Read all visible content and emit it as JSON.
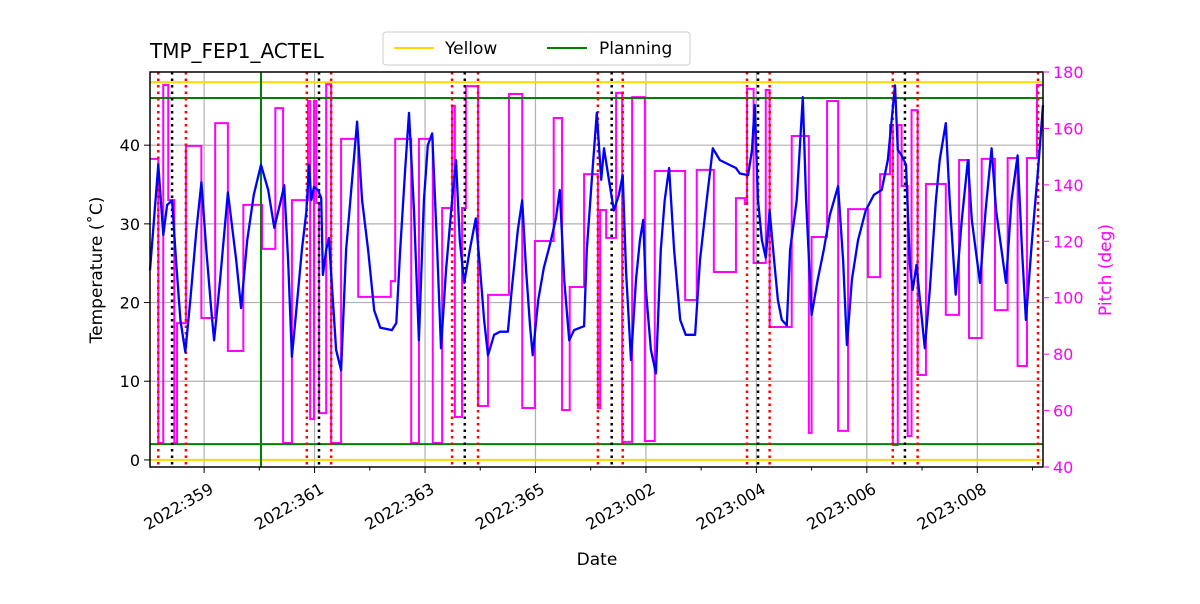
{
  "chart_data": {
    "type": "line",
    "title": "TMP_FEP1_ACTEL",
    "xlabel": "Date",
    "ylabel": "Temperature ($^\\circ$C)",
    "ylabel_display": "Temperature (˚C)",
    "y2label": "Pitch (deg)",
    "xlim": [
      "2022:358.02",
      "2023:009.19"
    ],
    "ylim": [
      -0.9,
      49.3
    ],
    "y2lim": [
      40,
      180
    ],
    "grid": true,
    "legend_placement": "top-center, above plot",
    "x_tick_labels": [
      "2022:359",
      "2022:361",
      "2022:363",
      "2022:365",
      "2023:002",
      "2023:004",
      "2023:006",
      "2023:008"
    ],
    "y_ticks": [
      0,
      10,
      20,
      30,
      40
    ],
    "y2_ticks": [
      40,
      60,
      80,
      100,
      120,
      140,
      160,
      180
    ],
    "colors": {
      "temperature": "#0000ff",
      "pitch": "#ff00ff",
      "yellow": "#ffd700",
      "planning": "#008000",
      "red_marker": "#ff0000",
      "black_marker": "#000000",
      "grid": "#b0b0b0"
    },
    "legend": [
      {
        "name": "Yellow",
        "color": "#ffd700"
      },
      {
        "name": "Planning",
        "color": "#008000"
      }
    ],
    "hlines": [
      {
        "series": "Yellow",
        "value": 48
      },
      {
        "series": "Yellow",
        "value": 0
      },
      {
        "series": "Planning",
        "value": 46
      },
      {
        "series": "Planning",
        "value": 2
      }
    ],
    "vline_green": [
      "2022:360.03"
    ],
    "vlines_red": [
      "2022:358.17",
      "2022:358.67",
      "2022:360.86",
      "2022:361.30",
      "2022:363.49",
      "2022:363.96",
      "2023:001.13",
      "2023:001.58",
      "2023:003.83",
      "2023:004.24",
      "2023:006.47",
      "2023:006.92",
      "2023:009.10"
    ],
    "vlines_black": [
      "2022:358.42",
      "2022:361.08",
      "2022:363.72",
      "2023:001.38",
      "2023:004.03",
      "2023:006.69"
    ],
    "temperature": [
      [
        "2022:358.02",
        24.1
      ],
      [
        "2022:358.17",
        37.5
      ],
      [
        "2022:358.26",
        28.6
      ],
      [
        "2022:358.33",
        32.4
      ],
      [
        "2022:358.42",
        33.0
      ],
      [
        "2022:358.49",
        25.4
      ],
      [
        "2022:358.57",
        17.8
      ],
      [
        "2022:358.66",
        13.7
      ],
      [
        "2022:358.75",
        20.3
      ],
      [
        "2022:358.86",
        29.2
      ],
      [
        "2022:358.95",
        35.3
      ],
      [
        "2022:359.04",
        26.7
      ],
      [
        "2022:359.13",
        19.0
      ],
      [
        "2022:359.18",
        15.2
      ],
      [
        "2022:359.29",
        22.9
      ],
      [
        "2022:359.43",
        34.0
      ],
      [
        "2022:359.58",
        25.4
      ],
      [
        "2022:359.67",
        19.3
      ],
      [
        "2022:359.78",
        27.9
      ],
      [
        "2022:359.90",
        33.7
      ],
      [
        "2022:360.03",
        37.5
      ],
      [
        "2022:360.16",
        34.3
      ],
      [
        "2022:360.27",
        29.5
      ],
      [
        "2022:360.39",
        33.0
      ],
      [
        "2022:360.45",
        34.9
      ],
      [
        "2022:360.52",
        25.4
      ],
      [
        "2022:360.59",
        13.1
      ],
      [
        "2022:360.67",
        19.0
      ],
      [
        "2022:360.77",
        26.7
      ],
      [
        "2022:360.85",
        31.5
      ],
      [
        "2022:360.90",
        37.5
      ],
      [
        "2022:360.94",
        33.0
      ],
      [
        "2022:360.99",
        34.7
      ],
      [
        "2022:361.06",
        34.3
      ],
      [
        "2022:361.12",
        33.3
      ],
      [
        "2022:361.15",
        23.5
      ],
      [
        "2022:361.21",
        26.7
      ],
      [
        "2022:361.26",
        28.2
      ],
      [
        "2022:361.32",
        21.6
      ],
      [
        "2022:361.39",
        14.0
      ],
      [
        "2022:361.48",
        11.4
      ],
      [
        "2022:361.57",
        26.7
      ],
      [
        "2022:361.68",
        35.6
      ],
      [
        "2022:361.77",
        43.0
      ],
      [
        "2022:361.86",
        33.0
      ],
      [
        "2022:361.97",
        26.7
      ],
      [
        "2022:362.08",
        19.0
      ],
      [
        "2022:362.19",
        16.8
      ],
      [
        "2022:362.40",
        16.5
      ],
      [
        "2022:362.48",
        17.4
      ],
      [
        "2022:362.55",
        26.7
      ],
      [
        "2022:362.64",
        36.8
      ],
      [
        "2022:362.71",
        44.1
      ],
      [
        "2022:362.80",
        31.7
      ],
      [
        "2022:362.89",
        15.2
      ],
      [
        "2022:362.98",
        33.0
      ],
      [
        "2022:363.05",
        40.0
      ],
      [
        "2022:363.13",
        41.5
      ],
      [
        "2022:363.22",
        26.7
      ],
      [
        "2022:363.29",
        14.2
      ],
      [
        "2022:363.38",
        24.1
      ],
      [
        "2022:363.49",
        33.0
      ],
      [
        "2022:363.56",
        38.1
      ],
      [
        "2022:363.63",
        27.9
      ],
      [
        "2022:363.71",
        22.5
      ],
      [
        "2022:363.81",
        26.7
      ],
      [
        "2022:363.92",
        30.7
      ],
      [
        "2022:364.00",
        24.1
      ],
      [
        "2022:364.07",
        17.8
      ],
      [
        "2022:364.14",
        13.3
      ],
      [
        "2022:364.25",
        15.9
      ],
      [
        "2022:364.36",
        16.3
      ],
      [
        "2022:364.50",
        16.3
      ],
      [
        "2022:364.57",
        21.6
      ],
      [
        "2022:364.68",
        29.2
      ],
      [
        "2022:364.76",
        33.0
      ],
      [
        "2022:364.83",
        24.1
      ],
      [
        "2022:364.90",
        17.1
      ],
      [
        "2022:364.95",
        13.3
      ],
      [
        "2022:365.05",
        20.3
      ],
      [
        "2022:365.15",
        24.4
      ],
      [
        "2022:365.26",
        27.3
      ],
      [
        "2022:365.37",
        30.7
      ],
      [
        "2022:365.44",
        34.3
      ],
      [
        "2022:365.52",
        22.9
      ],
      [
        "2022:365.61",
        15.2
      ],
      [
        "2022:365.70",
        16.5
      ],
      [
        "2022:365.88",
        17.0
      ],
      [
        "2022:365.93",
        26.7
      ],
      [
        "2023:001.02",
        35.6
      ],
      [
        "2023:001.11",
        44.1
      ],
      [
        "2023:001.19",
        35.6
      ],
      [
        "2023:001.24",
        39.6
      ],
      [
        "2023:001.33",
        35.6
      ],
      [
        "2023:001.42",
        31.7
      ],
      [
        "2023:001.51",
        33.7
      ],
      [
        "2023:001.58",
        36.2
      ],
      [
        "2023:001.64",
        24.1
      ],
      [
        "2023:001.73",
        12.7
      ],
      [
        "2023:001.82",
        22.9
      ],
      [
        "2023:001.89",
        27.9
      ],
      [
        "2023:001.95",
        30.5
      ],
      [
        "2023:002.00",
        21.6
      ],
      [
        "2023:002.09",
        14.0
      ],
      [
        "2023:002.18",
        11.0
      ],
      [
        "2023:002.27",
        26.7
      ],
      [
        "2023:002.34",
        33.0
      ],
      [
        "2023:002.42",
        37.1
      ],
      [
        "2023:002.51",
        26.7
      ],
      [
        "2023:002.62",
        17.8
      ],
      [
        "2023:002.72",
        15.9
      ],
      [
        "2023:002.89",
        15.9
      ],
      [
        "2023:002.98",
        25.4
      ],
      [
        "2023:003.10",
        33.0
      ],
      [
        "2023:003.21",
        39.6
      ],
      [
        "2023:003.34",
        38.1
      ],
      [
        "2023:003.63",
        37.1
      ],
      [
        "2023:003.70",
        36.4
      ],
      [
        "2023:003.85",
        36.2
      ],
      [
        "2023:003.92",
        39.4
      ],
      [
        "2023:003.97",
        45.1
      ],
      [
        "2023:004.03",
        33.0
      ],
      [
        "2023:004.10",
        27.9
      ],
      [
        "2023:004.17",
        25.7
      ],
      [
        "2023:004.24",
        31.7
      ],
      [
        "2023:004.32",
        25.4
      ],
      [
        "2023:004.39",
        20.3
      ],
      [
        "2023:004.46",
        17.8
      ],
      [
        "2023:004.55",
        17.1
      ],
      [
        "2023:004.61",
        26.7
      ],
      [
        "2023:004.73",
        33.0
      ],
      [
        "2023:004.84",
        46.1
      ],
      [
        "2023:004.90",
        33.0
      ],
      [
        "2023:005.00",
        18.4
      ],
      [
        "2023:005.11",
        22.9
      ],
      [
        "2023:005.22",
        26.7
      ],
      [
        "2023:005.33",
        31.1
      ],
      [
        "2023:005.48",
        34.8
      ],
      [
        "2023:005.57",
        25.4
      ],
      [
        "2023:005.64",
        14.6
      ],
      [
        "2023:005.73",
        22.9
      ],
      [
        "2023:005.84",
        27.9
      ],
      [
        "2023:005.98",
        31.7
      ],
      [
        "2023:006.13",
        33.7
      ],
      [
        "2023:006.27",
        34.3
      ],
      [
        "2023:006.38",
        38.1
      ],
      [
        "2023:006.51",
        47.6
      ],
      [
        "2023:006.56",
        39.4
      ],
      [
        "2023:006.63",
        38.7
      ],
      [
        "2023:006.71",
        37.5
      ],
      [
        "2023:006.78",
        24.8
      ],
      [
        "2023:006.83",
        21.6
      ],
      [
        "2023:006.90",
        24.8
      ],
      [
        "2023:006.98",
        19.0
      ],
      [
        "2023:007.05",
        14.2
      ],
      [
        "2023:007.14",
        21.6
      ],
      [
        "2023:007.25",
        33.0
      ],
      [
        "2023:007.32",
        38.1
      ],
      [
        "2023:007.43",
        42.8
      ],
      [
        "2023:007.50",
        33.0
      ],
      [
        "2023:007.61",
        21.0
      ],
      [
        "2023:007.72",
        30.5
      ],
      [
        "2023:007.83",
        38.1
      ],
      [
        "2023:007.90",
        30.5
      ],
      [
        "2023:008.05",
        22.5
      ],
      [
        "2023:008.15",
        31.7
      ],
      [
        "2023:008.26",
        39.6
      ],
      [
        "2023:008.34",
        31.7
      ],
      [
        "2023:008.52",
        22.5
      ],
      [
        "2023:008.62",
        33.0
      ],
      [
        "2023:008.73",
        38.7
      ],
      [
        "2023:008.81",
        26.7
      ],
      [
        "2023:008.88",
        17.8
      ],
      [
        "2023:008.99",
        27.9
      ],
      [
        "2023:009.10",
        36.8
      ],
      [
        "2023:009.19",
        45.1
      ]
    ],
    "pitch_steps": [
      [
        "2022:358.02",
        149.2
      ],
      [
        "2022:358.17",
        48.5
      ],
      [
        "2022:358.26",
        175.4
      ],
      [
        "2022:358.35",
        134.6
      ],
      [
        "2022:358.46",
        48.5
      ],
      [
        "2022:358.51",
        91.0
      ],
      [
        "2022:358.67",
        153.8
      ],
      [
        "2022:358.95",
        92.8
      ],
      [
        "2022:359.20",
        161.9
      ],
      [
        "2022:359.43",
        81.1
      ],
      [
        "2022:359.71",
        132.9
      ],
      [
        "2022:360.05",
        117.3
      ],
      [
        "2022:360.29",
        167.2
      ],
      [
        "2022:360.43",
        48.5
      ],
      [
        "2022:360.59",
        134.6
      ],
      [
        "2022:360.88",
        169.7
      ],
      [
        "2022:360.92",
        57.0
      ],
      [
        "2022:360.99",
        169.7
      ],
      [
        "2022:361.03",
        133.6
      ],
      [
        "2022:361.08",
        59.1
      ],
      [
        "2022:361.21",
        175.7
      ],
      [
        "2022:361.30",
        48.5
      ],
      [
        "2022:361.48",
        156.3
      ],
      [
        "2022:361.79",
        100.3
      ],
      [
        "2022:362.38",
        105.9
      ],
      [
        "2022:362.46",
        156.3
      ],
      [
        "2022:362.75",
        48.5
      ],
      [
        "2022:362.89",
        156.3
      ],
      [
        "2022:363.14",
        48.5
      ],
      [
        "2022:363.31",
        131.8
      ],
      [
        "2022:363.49",
        168.0
      ],
      [
        "2022:363.54",
        57.7
      ],
      [
        "2022:363.67",
        131.8
      ],
      [
        "2022:363.74",
        175.0
      ],
      [
        "2022:363.96",
        61.6
      ],
      [
        "2022:364.14",
        101.0
      ],
      [
        "2022:364.52",
        172.2
      ],
      [
        "2022:364.76",
        60.9
      ],
      [
        "2022:364.99",
        120.1
      ],
      [
        "2022:365.33",
        163.7
      ],
      [
        "2022:365.48",
        60.2
      ],
      [
        "2022:365.62",
        103.8
      ],
      [
        "2022:365.88",
        143.8
      ],
      [
        "2023:001.13",
        60.9
      ],
      [
        "2023:001.17",
        131.1
      ],
      [
        "2023:001.28",
        121.2
      ],
      [
        "2023:001.46",
        172.6
      ],
      [
        "2023:001.57",
        48.9
      ],
      [
        "2023:001.75",
        171.1
      ],
      [
        "2023:001.98",
        49.2
      ],
      [
        "2023:002.16",
        144.9
      ],
      [
        "2023:002.71",
        99.2
      ],
      [
        "2023:002.92",
        145.3
      ],
      [
        "2023:003.23",
        109.1
      ],
      [
        "2023:003.63",
        135.3
      ],
      [
        "2023:003.79",
        133.2
      ],
      [
        "2023:003.83",
        174.0
      ],
      [
        "2023:003.95",
        112.3
      ],
      [
        "2023:004.17",
        173.6
      ],
      [
        "2023:004.24",
        89.6
      ],
      [
        "2023:004.64",
        157.3
      ],
      [
        "2023:004.95",
        52.1
      ],
      [
        "2023:005.00",
        121.5
      ],
      [
        "2023:005.28",
        169.7
      ],
      [
        "2023:005.48",
        52.8
      ],
      [
        "2023:005.66",
        131.4
      ],
      [
        "2023:006.02",
        107.3
      ],
      [
        "2023:006.24",
        143.8
      ],
      [
        "2023:006.42",
        161.2
      ],
      [
        "2023:006.47",
        47.8
      ],
      [
        "2023:006.56",
        161.2
      ],
      [
        "2023:006.63",
        139.6
      ],
      [
        "2023:006.74",
        51.0
      ],
      [
        "2023:006.81",
        166.5
      ],
      [
        "2023:006.92",
        72.6
      ],
      [
        "2023:007.07",
        140.3
      ],
      [
        "2023:007.43",
        93.9
      ],
      [
        "2023:007.67",
        148.8
      ],
      [
        "2023:007.85",
        85.7
      ],
      [
        "2023:008.08",
        149.2
      ],
      [
        "2023:008.32",
        95.6
      ],
      [
        "2023:008.55",
        149.5
      ],
      [
        "2023:008.73",
        75.8
      ],
      [
        "2023:008.90",
        149.5
      ],
      [
        "2023:009.08",
        175.4
      ]
    ]
  }
}
